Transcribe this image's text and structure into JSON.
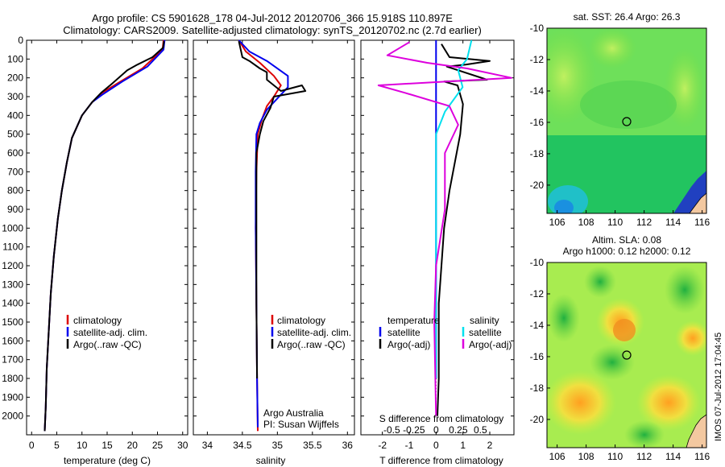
{
  "title_line1": "Argo profile: CS 5901628_178 04-Jul-2012 20120706_366 15.918S 110.897E",
  "title_line2": "Climatology: CARS2009. Satellite-adjusted climatology: synTS_20120702.nc (2.7d earlier)",
  "colors": {
    "clim": "#dd0000",
    "sat": "#0000ee",
    "argo": "#000000",
    "sat_s": "#00e0ee",
    "argo_s": "#dd00dd",
    "sea": "#22c422",
    "land": "#f3c8a0"
  },
  "depth_ticks": [
    "0",
    "100",
    "200",
    "300",
    "400",
    "500",
    "600",
    "700",
    "800",
    "900",
    "1000",
    "1100",
    "1200",
    "1300",
    "1400",
    "1500",
    "1600",
    "1700",
    "1800",
    "1900",
    "2000"
  ],
  "temp_panel": {
    "xlabel": "temperature (deg C)",
    "xticks": [
      "0",
      "5",
      "10",
      "15",
      "20",
      "25",
      "30"
    ],
    "legend": [
      "climatology",
      "satellite-adj. clim.",
      "Argo(..raw -QC)"
    ]
  },
  "sal_panel": {
    "xlabel": "salinity",
    "xticks": [
      "34",
      "34.5",
      "35",
      "35.5",
      "36"
    ],
    "legend": [
      "climatology",
      "satellite-adj. clim.",
      "Argo(..raw -QC)"
    ],
    "note1": "Argo Australia",
    "note2": "PI: Susan Wijffels"
  },
  "diff_panel": {
    "xlabel": "T difference from climatology",
    "xticks": [
      "-2",
      "-1",
      "0",
      "1",
      "2"
    ],
    "top_label": "S difference from climatology",
    "top_ticks": [
      "-0.5",
      "-0.25",
      "0",
      "0.25",
      "0.5"
    ],
    "legend_t_head": "temperature",
    "legend_s_head": "salinity",
    "legend_t": [
      "satellite",
      "Argo(-adj)"
    ],
    "legend_s": [
      "satellite",
      "Argo(-adj)"
    ]
  },
  "map1": {
    "title": "sat. SST: 26.4 Argo: 26.3",
    "yticks": [
      "-10",
      "-12",
      "-14",
      "-16",
      "-18",
      "-20"
    ],
    "xticks": [
      "106",
      "108",
      "110",
      "112",
      "114",
      "116"
    ]
  },
  "map2": {
    "title1": "Altim. SLA: 0.08",
    "title2": "Argo h1000: 0.12 h2000: 0.12",
    "yticks": [
      "-10",
      "-12",
      "-14",
      "-16",
      "-18",
      "-20"
    ],
    "xticks": [
      "106",
      "108",
      "110",
      "112",
      "114",
      "116"
    ]
  },
  "stamp": "IMOS 07-Jul-2012 17:04:45",
  "chart_data": [
    {
      "type": "line",
      "title": "",
      "xlabel": "temperature (deg C)",
      "ylabel": "",
      "xlim": [
        -1,
        31
      ],
      "ylim": [
        2100,
        0
      ],
      "series": [
        {
          "name": "climatology",
          "points": [
            [
              26.2,
              0
            ],
            [
              26.0,
              50
            ],
            [
              22,
              150
            ],
            [
              17,
              230
            ],
            [
              14,
              280
            ],
            [
              12,
              330
            ],
            [
              10,
              400
            ],
            [
              8,
              520
            ],
            [
              7,
              650
            ],
            [
              6,
              800
            ],
            [
              5.2,
              950
            ],
            [
              4.4,
              1150
            ],
            [
              3.8,
              1350
            ],
            [
              3.4,
              1550
            ],
            [
              3.0,
              1750
            ],
            [
              2.8,
              1950
            ],
            [
              2.6,
              2080
            ]
          ]
        },
        {
          "name": "satellite-adj. clim.",
          "points": [
            [
              26.4,
              0
            ],
            [
              26.2,
              50
            ],
            [
              23,
              140
            ],
            [
              18,
              220
            ],
            [
              14,
              290
            ],
            [
              12,
              330
            ],
            [
              10,
              400
            ],
            [
              8,
              520
            ],
            [
              7,
              650
            ],
            [
              6,
              800
            ],
            [
              5.2,
              950
            ],
            [
              4.4,
              1150
            ],
            [
              3.8,
              1350
            ],
            [
              3.4,
              1550
            ],
            [
              3.0,
              1750
            ],
            [
              2.8,
              1950
            ],
            [
              2.6,
              2080
            ]
          ]
        },
        {
          "name": "Argo(..raw -QC)",
          "points": [
            [
              26.3,
              5
            ],
            [
              26.1,
              40
            ],
            [
              24,
              90
            ],
            [
              21,
              130
            ],
            [
              19,
              160
            ],
            [
              16,
              230
            ],
            [
              13.8,
              280
            ],
            [
              12,
              330
            ],
            [
              10,
              400
            ],
            [
              8,
              520
            ],
            [
              7,
              650
            ],
            [
              6,
              800
            ],
            [
              5.2,
              950
            ],
            [
              4.4,
              1150
            ],
            [
              3.8,
              1350
            ],
            [
              3.4,
              1550
            ],
            [
              3.0,
              1750
            ],
            [
              2.8,
              1950
            ],
            [
              2.6,
              2080
            ]
          ]
        }
      ]
    },
    {
      "type": "line",
      "title": "",
      "xlabel": "salinity",
      "ylabel": "",
      "xlim": [
        33.8,
        36.1
      ],
      "ylim": [
        2100,
        0
      ],
      "series": [
        {
          "name": "climatology",
          "points": [
            [
              34.45,
              0
            ],
            [
              34.55,
              60
            ],
            [
              34.75,
              120
            ],
            [
              34.95,
              190
            ],
            [
              35.05,
              240
            ],
            [
              34.95,
              300
            ],
            [
              34.85,
              350
            ],
            [
              34.78,
              420
            ],
            [
              34.72,
              500
            ],
            [
              34.7,
              700
            ],
            [
              34.69,
              1000
            ],
            [
              34.7,
              1400
            ],
            [
              34.71,
              1800
            ],
            [
              34.72,
              2080
            ]
          ]
        },
        {
          "name": "satellite-adj. clim.",
          "points": [
            [
              34.45,
              0
            ],
            [
              34.6,
              60
            ],
            [
              34.85,
              110
            ],
            [
              35.15,
              190
            ],
            [
              35.15,
              250
            ],
            [
              35.0,
              310
            ],
            [
              34.85,
              370
            ],
            [
              34.75,
              440
            ],
            [
              34.7,
              500
            ],
            [
              34.69,
              700
            ],
            [
              34.69,
              1000
            ],
            [
              34.7,
              1400
            ],
            [
              34.71,
              1800
            ],
            [
              34.72,
              2060
            ]
          ]
        },
        {
          "name": "Argo(..raw -QC)",
          "points": [
            [
              34.45,
              5
            ],
            [
              34.5,
              90
            ],
            [
              34.6,
              110
            ],
            [
              34.75,
              150
            ],
            [
              34.85,
              170
            ],
            [
              34.85,
              210
            ],
            [
              35.05,
              270
            ],
            [
              35.35,
              240
            ],
            [
              35.4,
              270
            ],
            [
              34.95,
              300
            ],
            [
              34.9,
              360
            ],
            [
              34.8,
              430
            ],
            [
              34.75,
              500
            ],
            [
              34.7,
              600
            ],
            [
              34.7,
              1000
            ],
            [
              34.7,
              1400
            ],
            [
              34.71,
              1800
            ]
          ]
        }
      ]
    },
    {
      "type": "line",
      "title": "",
      "xlabel": "T difference from climatology",
      "ylabel": "",
      "xlim": [
        -2.8,
        2.9
      ],
      "ylim": [
        2100,
        0
      ],
      "series": [
        {
          "name": "temperature satellite",
          "points": [
            [
              0,
              0
            ],
            [
              0,
              100
            ],
            [
              0,
              200
            ],
            [
              0,
              300
            ],
            [
              0,
              500
            ],
            [
              0,
              1000
            ],
            [
              0,
              1500
            ],
            [
              0,
              1800
            ]
          ]
        },
        {
          "name": "temperature Argo(-adj)",
          "points": [
            [
              0.2,
              20
            ],
            [
              0.5,
              90
            ],
            [
              2.0,
              110
            ],
            [
              1.1,
              130
            ],
            [
              0.4,
              140
            ],
            [
              1.9,
              210
            ],
            [
              0.3,
              220
            ],
            [
              0.8,
              240
            ],
            [
              1.0,
              340
            ],
            [
              0.9,
              500
            ],
            [
              0.5,
              800
            ],
            [
              0.3,
              1000
            ],
            [
              0.1,
              1400
            ],
            [
              0.1,
              1800
            ],
            [
              0.05,
              2000
            ]
          ]
        },
        {
          "name": "salinity satellite",
          "points": [
            [
              0.4,
              0
            ],
            [
              0.35,
              100
            ],
            [
              0.25,
              160
            ],
            [
              0.3,
              250
            ],
            [
              0.1,
              380
            ],
            [
              0,
              500
            ],
            [
              0,
              800
            ],
            [
              0,
              1000
            ],
            [
              0,
              1500
            ],
            [
              0,
              1800
            ]
          ]
        },
        {
          "name": "salinity Argo(-adj)",
          "points": [
            [
              -0.3,
              10
            ],
            [
              -0.55,
              80
            ],
            [
              -0.1,
              120
            ],
            [
              0.35,
              150
            ],
            [
              0.85,
              200
            ],
            [
              -0.65,
              240
            ],
            [
              -0.35,
              280
            ],
            [
              0.15,
              350
            ],
            [
              0.25,
              450
            ],
            [
              0.1,
              600
            ],
            [
              0.1,
              900
            ],
            [
              0.0,
              1200
            ],
            [
              -0.02,
              1500
            ],
            [
              0.0,
              2000
            ]
          ]
        }
      ]
    }
  ]
}
